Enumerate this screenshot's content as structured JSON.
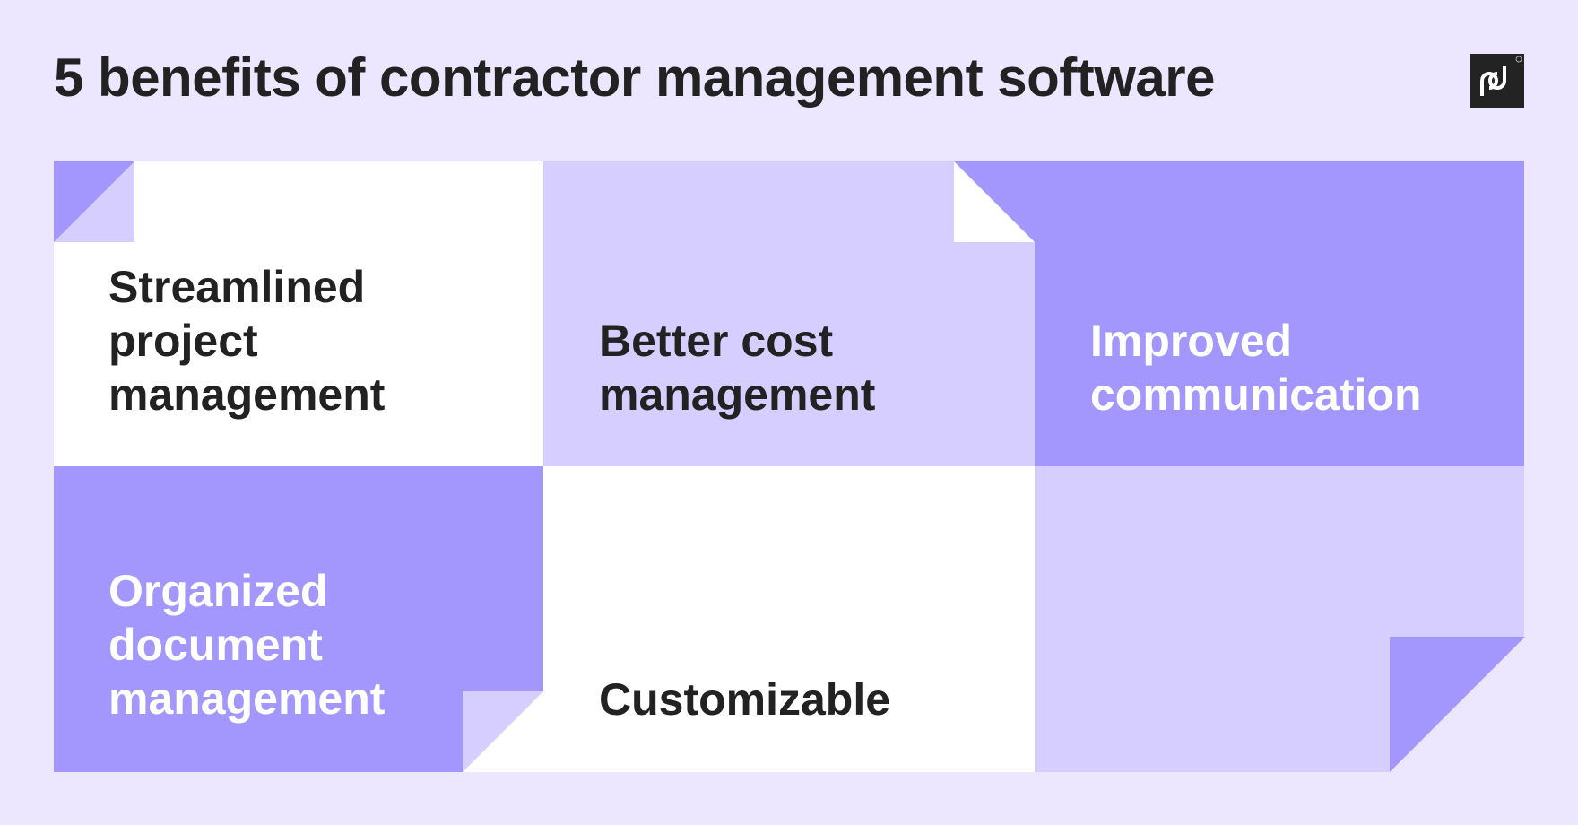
{
  "title": "5 benefits of contractor management software",
  "logo": {
    "text": "pd",
    "icon": "pandadoc-logo"
  },
  "colors": {
    "background": "#ece6fe",
    "light": "#d6cefe",
    "accent": "#a397fe",
    "white": "#ffffff",
    "text_dark": "#222222",
    "text_light": "#ffffff"
  },
  "benefits": [
    {
      "lines": [
        "Streamlined",
        "project",
        "management"
      ]
    },
    {
      "lines": [
        "Better cost",
        "management"
      ]
    },
    {
      "lines": [
        "Improved",
        "communication"
      ]
    },
    {
      "lines": [
        "Organized",
        "document",
        "management"
      ]
    },
    {
      "lines": [
        "Customizable"
      ]
    }
  ]
}
